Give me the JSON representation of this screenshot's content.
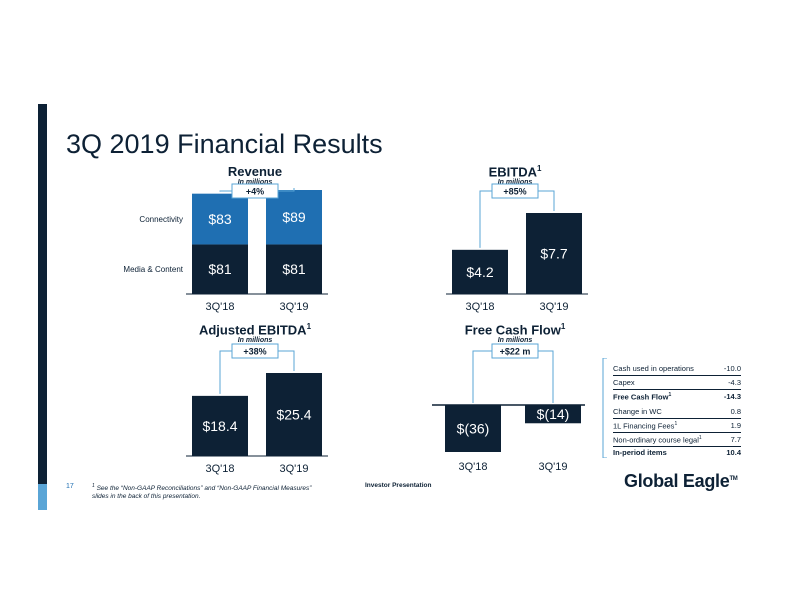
{
  "page": {
    "title": "3Q 2019 Financial Results",
    "page_number": "17",
    "footnote_marker": "1",
    "footnote": "See the “Non-GAAP Reconciliations” and “Non-GAAP Financial Measures” slides in the back of this presentation.",
    "center_label": "Investor Presentation",
    "logo_text": "Global Eagle",
    "logo_tm": "TM"
  },
  "colors": {
    "navy": "#0d2135",
    "blue": "#1f6fb2",
    "light_blue": "#5aa5d6",
    "bracket": "#5aa5d6"
  },
  "chart_data": [
    {
      "id": "revenue",
      "type": "bar",
      "stacked": true,
      "title": "Revenue",
      "title_sup": "",
      "subtitle": "In millions",
      "categories": [
        "3Q'18",
        "3Q'19"
      ],
      "series": [
        {
          "name": "Media & Content",
          "values": [
            81,
            81
          ],
          "labels": [
            "$81",
            "$81"
          ],
          "color": "#0d2135"
        },
        {
          "name": "Connectivity",
          "values": [
            83,
            89
          ],
          "labels": [
            "$83",
            "$89"
          ],
          "color": "#1f6fb2"
        }
      ],
      "change_label": "+4%",
      "ylim": [
        0,
        170
      ]
    },
    {
      "id": "ebitda",
      "type": "bar",
      "title": "EBITDA",
      "title_sup": "1",
      "subtitle": "In millions",
      "categories": [
        "3Q'18",
        "3Q'19"
      ],
      "values": [
        4.2,
        7.7
      ],
      "labels": [
        "$4.2",
        "$7.7"
      ],
      "change_label": "+85%",
      "ylim": [
        0,
        10.5
      ]
    },
    {
      "id": "adj-ebitda",
      "type": "bar",
      "title": "Adjusted EBITDA",
      "title_sup": "1",
      "subtitle": "In millions",
      "categories": [
        "3Q'18",
        "3Q'19"
      ],
      "values": [
        18.4,
        25.4
      ],
      "labels": [
        "$18.4",
        "$25.4"
      ],
      "change_label": "+38%",
      "ylim": [
        0,
        34
      ]
    },
    {
      "id": "fcf",
      "type": "bar",
      "title": "Free Cash Flow",
      "title_sup": "1",
      "subtitle": "In millions",
      "categories": [
        "3Q'18",
        "3Q'19"
      ],
      "values": [
        -36,
        -14
      ],
      "labels": [
        "$(36)",
        "$(14)"
      ],
      "change_label": "+$22 m",
      "ylim": [
        -40,
        0
      ]
    }
  ],
  "fcf_table": {
    "rows": [
      {
        "label": "Cash used in operations",
        "value": "-10.0",
        "bold": false
      },
      {
        "label": "Capex",
        "value": "-4.3",
        "bold": false
      },
      {
        "label": "Free Cash Flow",
        "sup": "1",
        "value": "-14.3",
        "bold": true
      },
      {
        "label": "Change in WC",
        "value": "0.8",
        "bold": false
      },
      {
        "label": "1L Financing Fees",
        "sup": "1",
        "value": "1.9",
        "bold": false
      },
      {
        "label": "Non-ordinary course legal",
        "sup": "1",
        "value": "7.7",
        "bold": false
      },
      {
        "label": "In-period items",
        "value": "10.4",
        "bold": true
      }
    ]
  }
}
